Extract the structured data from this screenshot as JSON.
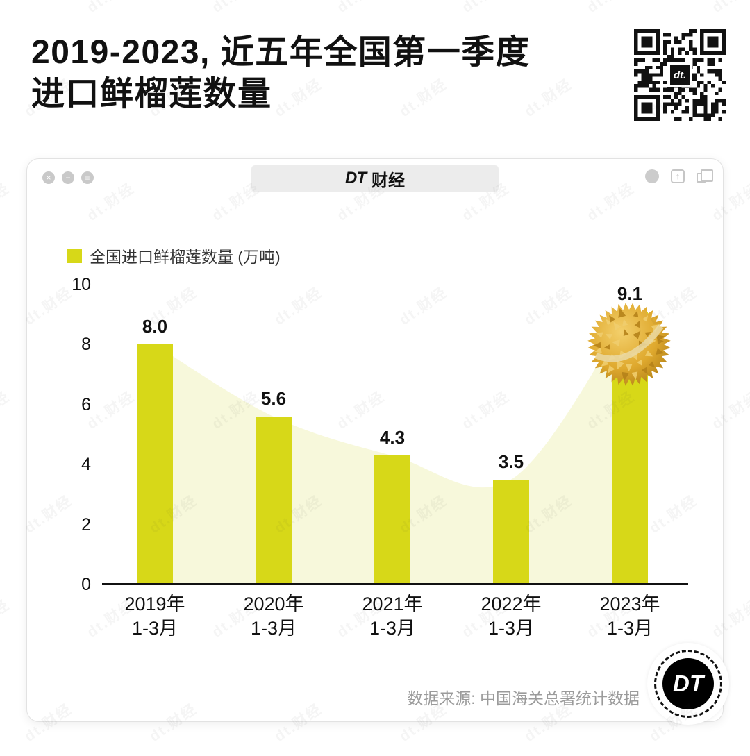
{
  "page": {
    "title_line1": "2019-2023, 近五年全国第一季度",
    "title_line2": "进口鲜榴莲数量",
    "watermark_text": "dt.财经",
    "qr_label": "dt."
  },
  "window": {
    "logo": "DT",
    "title": "财经",
    "left_controls": [
      "close-icon",
      "minimize-icon",
      "menu-icon"
    ],
    "right_controls": [
      "record-icon",
      "share-icon",
      "overlap-windows-icon"
    ]
  },
  "chart_data": {
    "type": "bar",
    "title": "2019-2023, 近五年全国第一季度进口鲜榴莲数量",
    "legend": "全国进口鲜榴莲数量 (万吨)",
    "categories": [
      [
        "2019年",
        "1-3月"
      ],
      [
        "2020年",
        "1-3月"
      ],
      [
        "2021年",
        "1-3月"
      ],
      [
        "2022年",
        "1-3月"
      ],
      [
        "2023年",
        "1-3月"
      ]
    ],
    "values": [
      8.0,
      5.6,
      4.3,
      3.5,
      9.1
    ],
    "value_labels": [
      "8.0",
      "5.6",
      "4.3",
      "3.5",
      "9.1"
    ],
    "ylabel": "万吨",
    "ylim": [
      0,
      10
    ],
    "yticks": [
      0,
      2,
      4,
      6,
      8,
      10
    ],
    "grid": false,
    "legend_position": "top-left",
    "bar_color": "#d7d818",
    "area_color": "#f7f8db",
    "annotation": "golden durian image on top of 2023 bar"
  },
  "footer": {
    "source": "数据来源: 中国海关总署统计数据",
    "logo_text": "DT"
  }
}
